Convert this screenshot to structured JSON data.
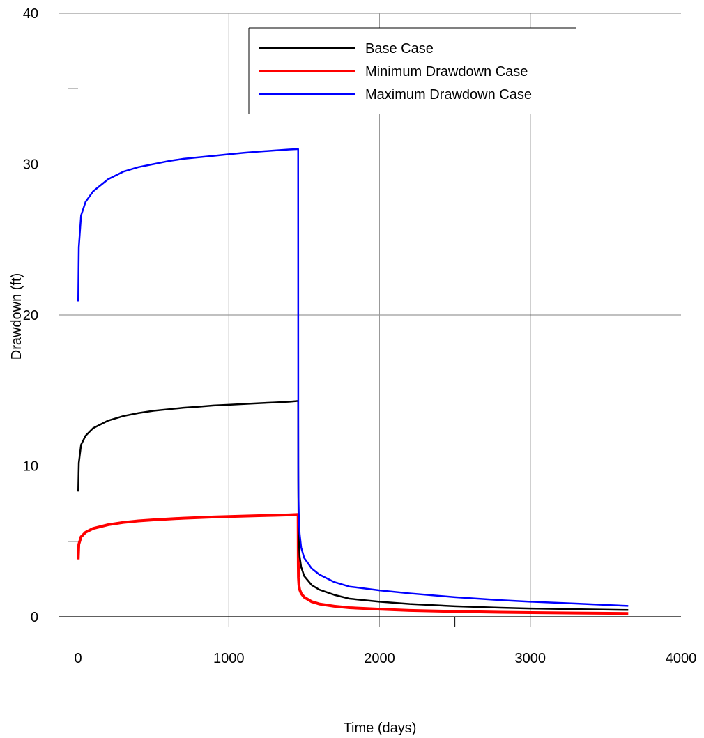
{
  "chart_data": {
    "type": "line",
    "title": "",
    "xlabel": "Time (days)",
    "ylabel": "Drawdown (ft)",
    "xlim": [
      0,
      4000
    ],
    "ylim": [
      0,
      40
    ],
    "x_ticks": [
      0,
      1000,
      2000,
      3000,
      4000
    ],
    "y_ticks": [
      0,
      10,
      20,
      30,
      40
    ],
    "grid": true,
    "legend_position": "top-right",
    "series": [
      {
        "name": "Base Case",
        "color": "#000000",
        "x": [
          1,
          5,
          20,
          50,
          100,
          200,
          300,
          400,
          500,
          600,
          700,
          800,
          900,
          1000,
          1100,
          1200,
          1300,
          1400,
          1460,
          1461,
          1462,
          1465,
          1470,
          1480,
          1500,
          1550,
          1600,
          1700,
          1800,
          2000,
          2200,
          2500,
          2800,
          3000,
          3300,
          3650
        ],
        "y": [
          8.3,
          10.2,
          11.4,
          12.0,
          12.5,
          13.0,
          13.3,
          13.5,
          13.65,
          13.75,
          13.85,
          13.92,
          14.0,
          14.05,
          14.1,
          14.15,
          14.2,
          14.25,
          14.3,
          9.0,
          7.0,
          5.0,
          4.0,
          3.3,
          2.7,
          2.1,
          1.8,
          1.45,
          1.2,
          1.0,
          0.85,
          0.7,
          0.6,
          0.55,
          0.5,
          0.45
        ]
      },
      {
        "name": "Minimum Drawdown Case",
        "color": "#ff0000",
        "x": [
          1,
          5,
          20,
          50,
          100,
          200,
          300,
          400,
          500,
          600,
          700,
          800,
          900,
          1000,
          1100,
          1200,
          1300,
          1400,
          1460,
          1461,
          1462,
          1465,
          1470,
          1480,
          1500,
          1550,
          1600,
          1700,
          1800,
          2000,
          2200,
          2500,
          2800,
          3000,
          3300,
          3650
        ],
        "y": [
          3.8,
          4.8,
          5.3,
          5.6,
          5.85,
          6.1,
          6.25,
          6.35,
          6.42,
          6.48,
          6.53,
          6.57,
          6.61,
          6.64,
          6.67,
          6.7,
          6.72,
          6.75,
          6.78,
          3.5,
          2.6,
          2.1,
          1.8,
          1.55,
          1.3,
          1.0,
          0.85,
          0.7,
          0.6,
          0.5,
          0.42,
          0.35,
          0.3,
          0.28,
          0.25,
          0.22
        ]
      },
      {
        "name": "Maximum Drawdown Case",
        "color": "#0000ff",
        "x": [
          1,
          5,
          20,
          50,
          100,
          200,
          300,
          400,
          500,
          600,
          700,
          800,
          900,
          1000,
          1100,
          1200,
          1300,
          1400,
          1460,
          1461,
          1462,
          1465,
          1470,
          1480,
          1500,
          1550,
          1600,
          1700,
          1800,
          2000,
          2200,
          2500,
          2800,
          3000,
          3300,
          3650
        ],
        "y": [
          20.9,
          24.5,
          26.6,
          27.5,
          28.2,
          29.0,
          29.5,
          29.8,
          30.0,
          30.2,
          30.35,
          30.45,
          30.55,
          30.65,
          30.75,
          30.83,
          30.9,
          30.97,
          31.0,
          10.0,
          8.0,
          6.5,
          5.5,
          4.6,
          3.9,
          3.2,
          2.8,
          2.3,
          2.0,
          1.75,
          1.55,
          1.3,
          1.1,
          1.0,
          0.88,
          0.72
        ]
      }
    ]
  }
}
